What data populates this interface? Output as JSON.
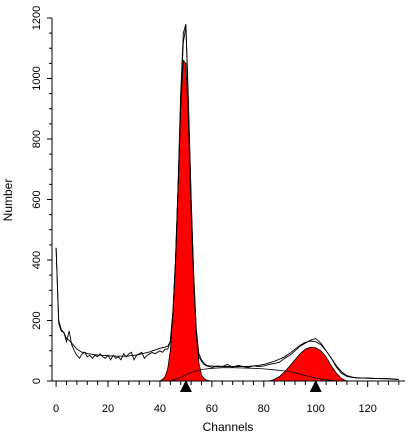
{
  "chart_data": {
    "type": "area",
    "title": "",
    "xlabel": "Channels",
    "ylabel": "Number",
    "xlim": [
      -1,
      134
    ],
    "ylim": [
      0,
      1200
    ],
    "xticks": [
      0,
      20,
      40,
      60,
      80,
      100,
      120
    ],
    "yticks": [
      0,
      200,
      400,
      600,
      800,
      1000,
      1200
    ],
    "x_minor_step": 4,
    "y_minor_step": 50,
    "markers": [
      50,
      100
    ],
    "grid": false,
    "colors": {
      "fill": "#ff0000",
      "line": "#000000",
      "marker": "#000000"
    },
    "series": [
      {
        "role": "histogram",
        "x": [
          0,
          1,
          2,
          3,
          4,
          5,
          6,
          7,
          8,
          9,
          10,
          11,
          12,
          13,
          14,
          15,
          16,
          17,
          18,
          19,
          20,
          21,
          22,
          23,
          24,
          25,
          26,
          27,
          28,
          29,
          30,
          31,
          32,
          33,
          34,
          35,
          36,
          37,
          38,
          39,
          40,
          41,
          42,
          43,
          44,
          45,
          46,
          47,
          48,
          49,
          50,
          51,
          52,
          53,
          54,
          55,
          56,
          57,
          58,
          59,
          60,
          62,
          64,
          66,
          68,
          70,
          72,
          74,
          76,
          78,
          80,
          82,
          84,
          86,
          88,
          90,
          92,
          94,
          96,
          98,
          100,
          102,
          104,
          106,
          108,
          110,
          112,
          114,
          116,
          120,
          124,
          128,
          132
        ],
        "y": [
          440,
          190,
          165,
          160,
          130,
          165,
          120,
          100,
          85,
          75,
          90,
          95,
          80,
          85,
          75,
          85,
          80,
          90,
          80,
          75,
          85,
          70,
          85,
          75,
          80,
          70,
          90,
          80,
          90,
          95,
          70,
          85,
          90,
          95,
          75,
          85,
          90,
          95,
          90,
          95,
          100,
          95,
          105,
          105,
          130,
          230,
          400,
          650,
          950,
          1150,
          1180,
          900,
          600,
          350,
          160,
          80,
          65,
          55,
          50,
          48,
          45,
          50,
          48,
          55,
          45,
          52,
          48,
          45,
          50,
          48,
          50,
          55,
          58,
          62,
          75,
          85,
          100,
          115,
          125,
          135,
          140,
          125,
          100,
          75,
          45,
          25,
          15,
          12,
          10,
          10,
          8,
          8,
          5
        ]
      },
      {
        "role": "fit",
        "x": [
          0,
          1,
          2,
          3,
          4,
          5,
          6,
          7,
          8,
          9,
          10,
          11,
          12,
          13,
          14,
          15,
          16,
          17,
          18,
          19,
          20,
          21,
          22,
          23,
          24,
          25,
          26,
          27,
          28,
          29,
          30,
          31,
          32,
          33,
          34,
          35,
          36,
          37,
          38,
          39,
          40,
          41,
          42,
          43,
          44,
          45,
          46,
          47,
          48,
          49,
          50,
          51,
          52,
          53,
          54,
          55,
          56,
          57,
          58,
          59,
          60,
          62,
          64,
          66,
          68,
          70,
          72,
          74,
          76,
          78,
          80,
          82,
          84,
          86,
          88,
          90,
          92,
          94,
          96,
          98,
          100,
          102,
          104,
          106,
          108,
          110,
          112,
          114,
          116,
          120,
          124,
          128,
          132
        ],
        "y": [
          440,
          200,
          170,
          160,
          140,
          135,
          125,
          115,
          105,
          100,
          95,
          95,
          90,
          90,
          88,
          87,
          86,
          85,
          85,
          84,
          84,
          83,
          83,
          82,
          82,
          82,
          82,
          82,
          83,
          84,
          85,
          86,
          88,
          90,
          92,
          94,
          96,
          100,
          102,
          105,
          108,
          110,
          112,
          115,
          130,
          220,
          390,
          640,
          930,
          1120,
          1170,
          920,
          610,
          350,
          170,
          90,
          70,
          58,
          52,
          50,
          50,
          48,
          48,
          48,
          48,
          48,
          48,
          48,
          50,
          52,
          55,
          60,
          65,
          72,
          80,
          92,
          105,
          118,
          128,
          132,
          130,
          120,
          100,
          75,
          50,
          30,
          18,
          13,
          11,
          9,
          8,
          7,
          5
        ]
      },
      {
        "role": "g1_peak",
        "x": [
          40,
          41,
          42,
          43,
          44,
          45,
          46,
          47,
          48,
          49,
          50,
          51,
          52,
          53,
          54,
          55,
          56,
          57,
          58,
          59,
          60
        ],
        "y": [
          0,
          5,
          15,
          40,
          100,
          220,
          400,
          640,
          900,
          1060,
          1050,
          850,
          560,
          320,
          150,
          60,
          20,
          8,
          3,
          1,
          0
        ]
      },
      {
        "role": "g2_peak",
        "x": [
          82,
          84,
          86,
          88,
          90,
          92,
          94,
          96,
          98,
          100,
          102,
          104,
          106,
          108,
          110,
          112
        ],
        "y": [
          0,
          5,
          15,
          30,
          50,
          70,
          90,
          105,
          112,
          110,
          100,
          80,
          50,
          25,
          8,
          0
        ]
      },
      {
        "role": "s_phase",
        "x": [
          44,
          48,
          52,
          56,
          60,
          64,
          68,
          72,
          76,
          80,
          84,
          88,
          92,
          96,
          100,
          104,
          108
        ],
        "y": [
          0,
          12,
          28,
          38,
          42,
          44,
          44,
          43,
          42,
          40,
          37,
          33,
          27,
          18,
          10,
          4,
          0
        ]
      }
    ]
  }
}
